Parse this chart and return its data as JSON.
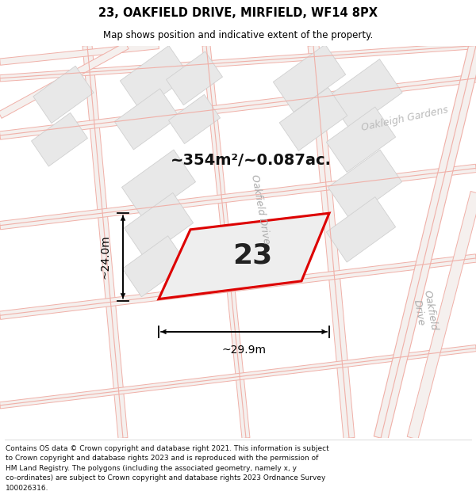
{
  "title": "23, OAKFIELD DRIVE, MIRFIELD, WF14 8PX",
  "subtitle": "Map shows position and indicative extent of the property.",
  "area_text": "~354m²/~0.087ac.",
  "number_label": "23",
  "dim_width": "~29.9m",
  "dim_height": "~24.0m",
  "map_bg": "#f7f7f7",
  "road_line_color": "#f0b0a8",
  "block_fill": "#e8e8e8",
  "block_edge": "#d0d0d0",
  "property_outline_color": "#dd0000",
  "property_fill": "#eeeeee",
  "text_label_color": "#cccccc",
  "footer_lines": [
    "Contains OS data © Crown copyright and database right 2021. This information is subject",
    "to Crown copyright and database rights 2023 and is reproduced with the permission of",
    "HM Land Registry. The polygons (including the associated geometry, namely x, y",
    "co-ordinates) are subject to Crown copyright and database rights 2023 Ordnance Survey",
    "100026316."
  ],
  "figsize": [
    6.0,
    6.25
  ],
  "dpi": 100
}
